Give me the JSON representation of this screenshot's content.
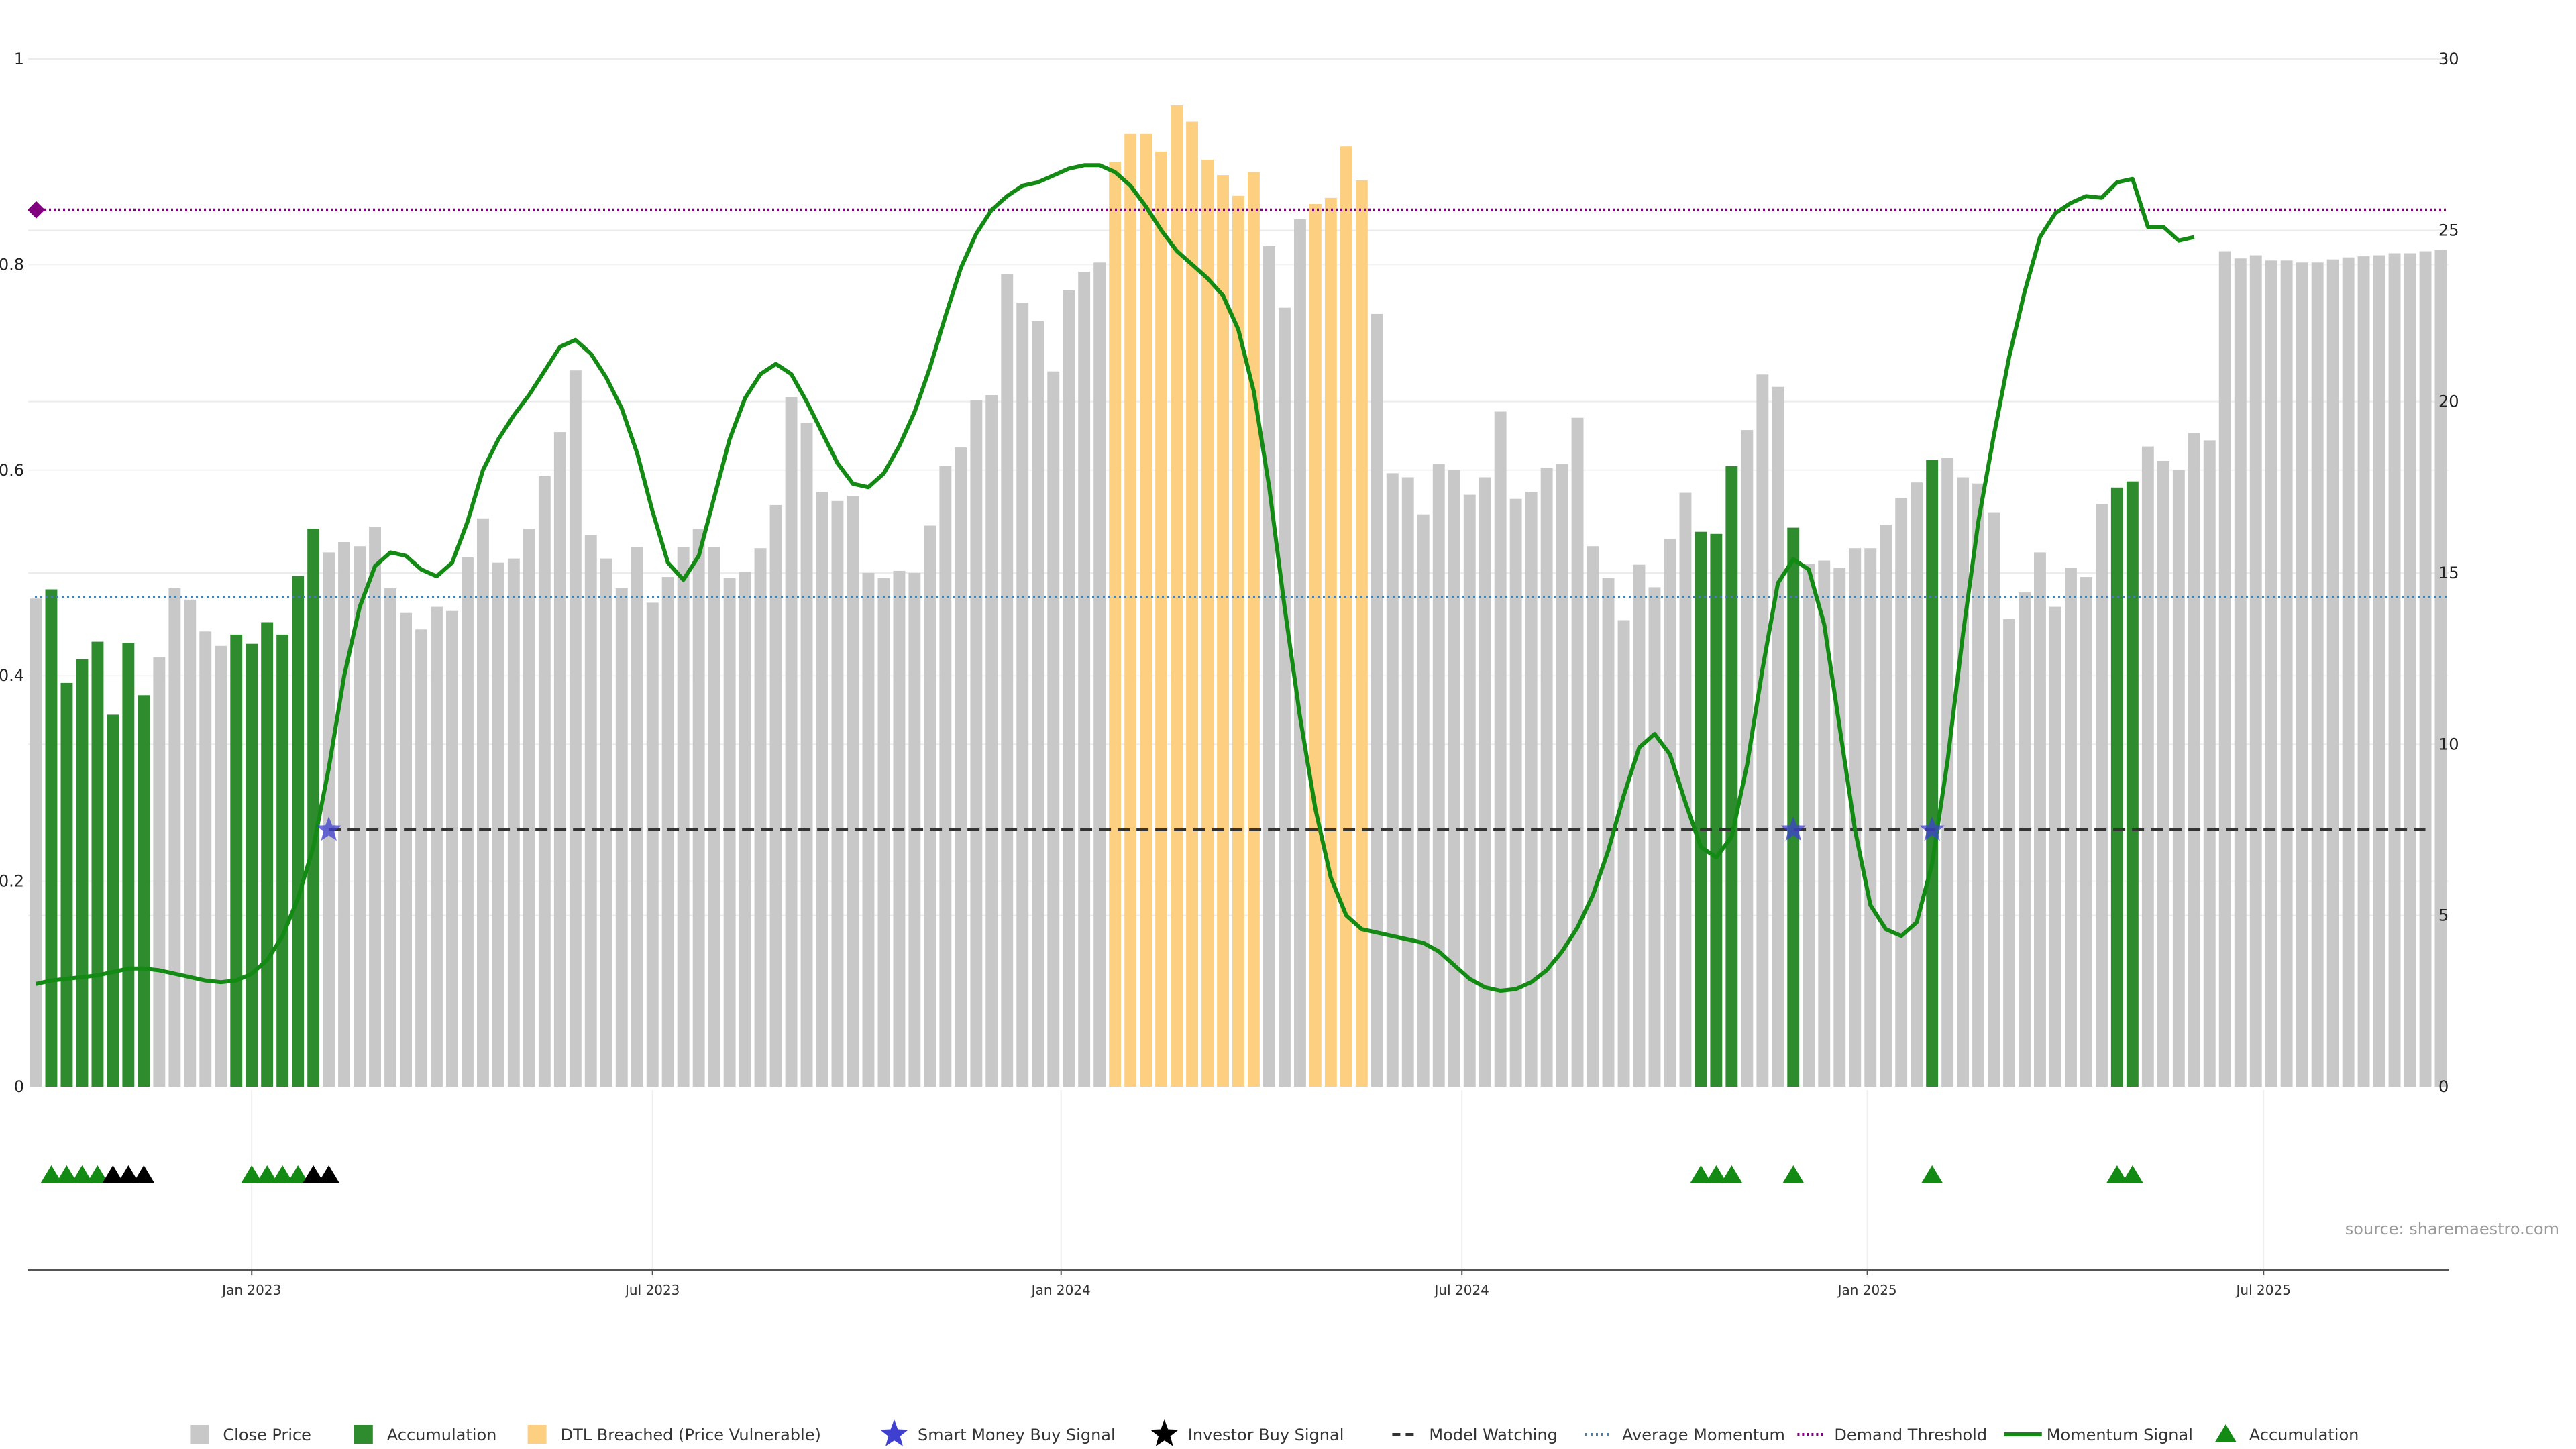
{
  "chart_data": {
    "type": "bar",
    "title": "",
    "source": "source: sharemaestro.com",
    "colors": {
      "close": "#c8c8c8",
      "accumulation": "#2e8b2e",
      "dtl": "#fdd081",
      "momentum": "#138a13",
      "demand": "#800080",
      "average": "#4a7fa8",
      "model": "#333333",
      "smart": "#4040d0",
      "investor": "#000000",
      "triangle": "#138a13"
    },
    "left_axis": {
      "ticks": [
        0,
        0.2,
        0.4,
        0.6,
        0.8,
        1
      ],
      "tick_labels": [
        "0",
        "0.2",
        "0.4",
        "0.6",
        "0.8",
        "1"
      ],
      "ylim": [
        0,
        1
      ]
    },
    "right_axis": {
      "ticks": [
        0,
        5,
        10,
        15,
        20,
        25,
        30
      ],
      "tick_labels": [
        "0",
        "5",
        "10",
        "15",
        "20",
        "25",
        "30"
      ],
      "ylim": [
        0,
        30
      ]
    },
    "x_ticks": [
      {
        "label": "Jan 2023",
        "index": 14
      },
      {
        "label": "Jul 2023",
        "index": 40
      },
      {
        "label": "Jan 2024",
        "index": 66.5
      },
      {
        "label": "Jul 2024",
        "index": 92.5
      },
      {
        "label": "Jan 2025",
        "index": 118.8
      },
      {
        "label": "Jul 2025",
        "index": 144.5
      }
    ],
    "close_price": [
      0.475,
      0.484,
      0.393,
      0.416,
      0.433,
      0.362,
      0.432,
      0.381,
      0.418,
      0.485,
      0.474,
      0.443,
      0.429,
      0.44,
      0.431,
      0.452,
      0.44,
      0.497,
      0.543,
      0.52,
      0.53,
      0.526,
      0.545,
      0.485,
      0.461,
      0.445,
      0.467,
      0.463,
      0.515,
      0.553,
      0.51,
      0.514,
      0.543,
      0.594,
      0.637,
      0.697,
      0.537,
      0.514,
      0.485,
      0.525,
      0.471,
      0.496,
      0.525,
      0.543,
      0.525,
      0.495,
      0.501,
      0.524,
      0.566,
      0.671,
      0.646,
      0.579,
      0.57,
      0.575,
      0.5,
      0.495,
      0.502,
      0.5,
      0.546,
      0.604,
      0.622,
      0.668,
      0.673,
      0.791,
      0.763,
      0.745,
      0.696,
      0.775,
      0.793,
      0.802,
      0.9,
      0.927,
      0.927,
      0.91,
      0.955,
      0.939,
      0.902,
      0.887,
      0.867,
      0.89,
      0.818,
      0.758,
      0.844,
      0.859,
      0.865,
      0.915,
      0.882,
      0.752,
      0.597,
      0.593,
      0.557,
      0.606,
      0.6,
      0.576,
      0.593,
      0.657,
      0.572,
      0.579,
      0.602,
      0.606,
      0.651,
      0.526,
      0.495,
      0.454,
      0.508,
      0.486,
      0.533,
      0.578,
      0.54,
      0.538,
      0.604,
      0.639,
      0.693,
      0.681,
      0.544,
      0.509,
      0.512,
      0.505,
      0.524,
      0.524,
      0.547,
      0.573,
      0.588,
      0.61,
      0.612,
      0.593,
      0.587,
      0.559,
      0.455,
      0.481,
      0.52,
      0.467,
      0.505,
      0.496,
      0.567,
      0.583,
      0.589,
      0.623,
      0.609,
      0.6,
      0.636,
      0.629,
      0.813,
      0.806,
      0.809,
      0.804,
      0.804,
      0.802,
      0.802,
      0.805,
      0.807,
      0.808,
      0.809,
      0.811,
      0.811,
      0.813,
      0.814
    ],
    "accumulation_indices": [
      1,
      2,
      3,
      4,
      5,
      6,
      7,
      13,
      14,
      15,
      16,
      17,
      18,
      108,
      109,
      110,
      114,
      123,
      135,
      136
    ],
    "dtl_indices": [
      70,
      71,
      72,
      73,
      74,
      75,
      76,
      77,
      78,
      79,
      83,
      84,
      85,
      86
    ],
    "momentum_signal": [
      3.0,
      3.1,
      3.15,
      3.2,
      3.25,
      3.35,
      3.45,
      3.45,
      3.4,
      3.3,
      3.2,
      3.1,
      3.05,
      3.1,
      3.3,
      3.7,
      4.4,
      5.5,
      7.0,
      9.3,
      12.0,
      14.0,
      15.2,
      15.6,
      15.5,
      15.1,
      14.9,
      15.3,
      16.5,
      18.0,
      18.9,
      19.6,
      20.2,
      20.9,
      21.6,
      21.8,
      21.4,
      20.7,
      19.8,
      18.5,
      16.8,
      15.3,
      14.8,
      15.5,
      17.2,
      18.9,
      20.1,
      20.8,
      21.1,
      20.8,
      20.0,
      19.1,
      18.2,
      17.6,
      17.5,
      17.9,
      18.7,
      19.7,
      21.0,
      22.5,
      23.9,
      24.9,
      25.6,
      26.0,
      26.3,
      26.4,
      26.6,
      26.8,
      26.9,
      26.9,
      26.7,
      26.3,
      25.7,
      25.0,
      24.4,
      24.0,
      23.6,
      23.1,
      22.1,
      20.3,
      17.5,
      14.0,
      10.8,
      8.1,
      6.1,
      5.0,
      4.6,
      4.5,
      4.4,
      4.3,
      4.2,
      3.95,
      3.55,
      3.15,
      2.9,
      2.8,
      2.85,
      3.05,
      3.4,
      3.95,
      4.65,
      5.6,
      6.9,
      8.5,
      9.9,
      10.3,
      9.7,
      8.3,
      7.0,
      6.7,
      7.3,
      9.4,
      12.2,
      14.7,
      15.4,
      15.1,
      13.5,
      10.5,
      7.5,
      5.3,
      4.6,
      4.4,
      4.8,
      6.5,
      9.5,
      13.2,
      16.5,
      19.0,
      21.3,
      23.2,
      24.8,
      25.5,
      25.8,
      26.0,
      25.95,
      26.4,
      26.5,
      25.1,
      25.1,
      24.7,
      24.8
    ],
    "average_momentum": 14.3,
    "demand_threshold": 25.6,
    "model_watching": {
      "value": 7.5,
      "start_index": 19,
      "end_index": 155
    },
    "smart_money_signals": [
      {
        "index": 19,
        "value": 7.5
      },
      {
        "index": 114,
        "value": 7.5
      },
      {
        "index": 123,
        "value": 7.5
      }
    ],
    "accumulation_markers": [
      1,
      2,
      3,
      4,
      14,
      15,
      16,
      17,
      108,
      109,
      110,
      114,
      123,
      135,
      136
    ],
    "investor_markers": [
      5,
      6,
      7,
      18,
      19
    ],
    "legend": [
      {
        "label": "Close Price",
        "kind": "square",
        "color_key": "close"
      },
      {
        "label": "Accumulation",
        "kind": "square",
        "color_key": "accumulation"
      },
      {
        "label": "DTL Breached (Price Vulnerable)",
        "kind": "square",
        "color_key": "dtl"
      },
      {
        "label": "Smart Money Buy Signal",
        "kind": "star",
        "color_key": "smart"
      },
      {
        "label": "Investor Buy Signal",
        "kind": "star",
        "color_key": "investor"
      },
      {
        "label": "Model Watching",
        "kind": "dash",
        "color_key": "model"
      },
      {
        "label": "Average Momentum",
        "kind": "dot",
        "color_key": "average"
      },
      {
        "label": "Demand Threshold",
        "kind": "dotdense",
        "color_key": "demand"
      },
      {
        "label": "Momentum Signal",
        "kind": "line",
        "color_key": "momentum"
      },
      {
        "label": "Accumulation",
        "kind": "triangle",
        "color_key": "triangle"
      }
    ]
  }
}
